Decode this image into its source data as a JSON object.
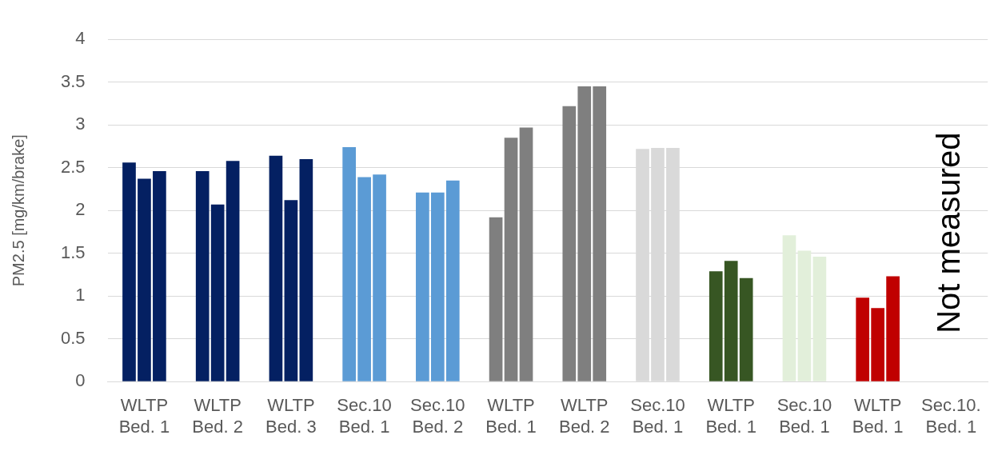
{
  "chart_data": {
    "type": "bar",
    "ylabel": "PM2.5 [mg/km/brake]",
    "categories": [
      "WLTP\nBed. 1",
      "WLTP\nBed. 2",
      "WLTP\nBed. 3",
      "Sec.10\nBed. 1",
      "Sec.10\nBed. 2",
      "WLTP\nBed. 1",
      "WLTP\nBed. 2",
      "Sec.10\nBed. 1",
      "WLTP\nBed. 1",
      "Sec.10\nBed. 1",
      "WLTP\nBed. 1",
      "Sec.10.\nBed. 1"
    ],
    "series": [
      {
        "colors": [
          "#042062",
          "#042062",
          "#042062",
          "#5b9bd5",
          "#5b9bd5",
          "#7f7f7f",
          "#7f7f7f",
          "#d9d9d9",
          "#375623",
          "#e2efda",
          "#c00000",
          "#c00000"
        ],
        "values": [
          2.56,
          2.46,
          2.64,
          2.74,
          2.21,
          1.92,
          3.22,
          2.72,
          1.29,
          1.71,
          0.98,
          null
        ]
      },
      {
        "colors": [
          "#042062",
          "#042062",
          "#042062",
          "#5b9bd5",
          "#5b9bd5",
          "#7f7f7f",
          "#7f7f7f",
          "#d9d9d9",
          "#375623",
          "#e2efda",
          "#c00000",
          "#c00000"
        ],
        "values": [
          2.37,
          2.07,
          2.12,
          2.39,
          2.21,
          2.85,
          3.45,
          2.73,
          1.41,
          1.53,
          0.86,
          null
        ]
      },
      {
        "colors": [
          "#042062",
          "#042062",
          "#042062",
          "#5b9bd5",
          "#5b9bd5",
          "#7f7f7f",
          "#7f7f7f",
          "#d9d9d9",
          "#375623",
          "#e2efda",
          "#c00000",
          "#c00000"
        ],
        "values": [
          2.46,
          2.58,
          2.6,
          2.42,
          2.35,
          2.97,
          3.45,
          2.73,
          1.21,
          1.46,
          1.23,
          null
        ]
      }
    ],
    "ylim": [
      0,
      4
    ],
    "yticks": [
      0,
      0.5,
      1,
      1.5,
      2,
      2.5,
      3,
      3.5,
      4
    ],
    "grid": "y",
    "legend": false,
    "annotations": [
      "Not measured"
    ]
  }
}
